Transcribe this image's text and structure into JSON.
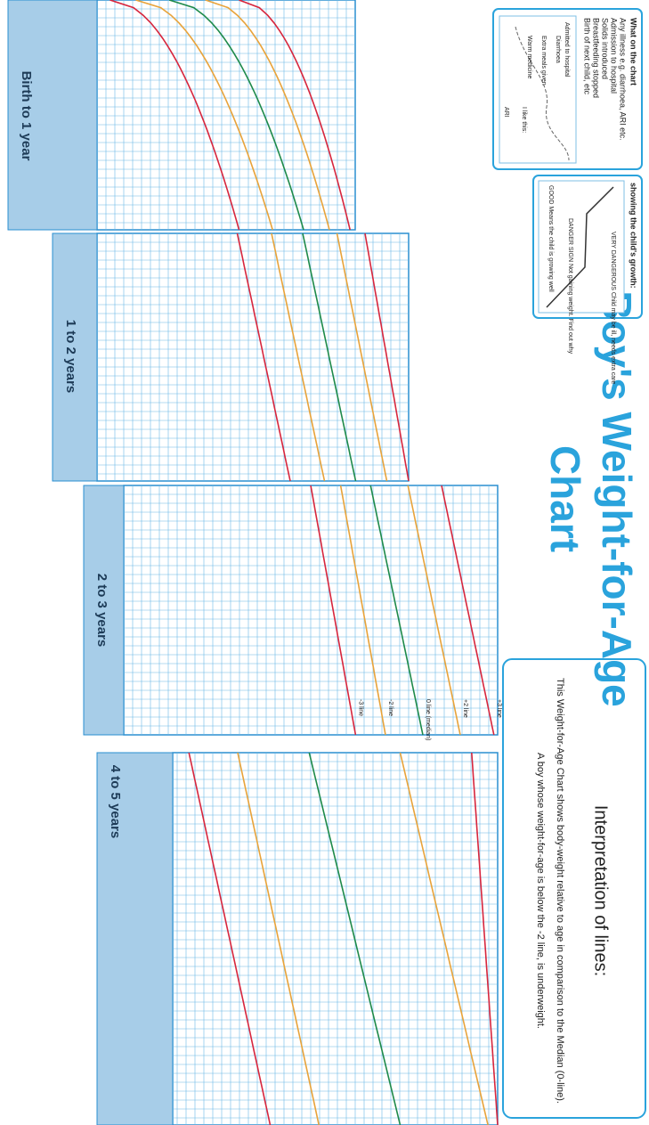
{
  "header": {
    "title_lines": [
      "Boy's Weight-for-Age",
      "Chart"
    ]
  },
  "guide_boxes": [
    {
      "heading": "What on the chart",
      "items": [
        "Any illness e.g. diarrhoea, ARI etc.",
        "Admission to hospital",
        "Solids introduced",
        "Breastfeeding stopped",
        "Birth of next child, etc"
      ],
      "example": [
        "ARI",
        "Admitted to hospital",
        "Diarrhoea",
        "Extra meals given",
        "Warm medicine",
        "I like this:"
      ]
    },
    {
      "heading": "showing the child's growth:",
      "notes": [
        "GOOD Means the child is growing well",
        "DANGER SIGN Not gaining weight. Find out why",
        "VERY DANGEROUS Child may be ill, needs extra care"
      ]
    }
  ],
  "panels": [
    {
      "label": "Birth to 1 year"
    },
    {
      "label": "1 to 2 years"
    },
    {
      "label": "2 to 3 years"
    },
    {
      "label": "4 to 5 years"
    }
  ],
  "line_labels": [
    "-3 line",
    "-2 line",
    "0 line (median)",
    "+2 line",
    "+3 line"
  ],
  "interpretation": {
    "title": "Interpretation of lines:",
    "lines": [
      "This Weight-for-Age Chart shows body-weight relative to age in comparison to the Median (0-line).",
      "A boy whose weight-for-age is below the -2 line, is underweight."
    ]
  }
}
